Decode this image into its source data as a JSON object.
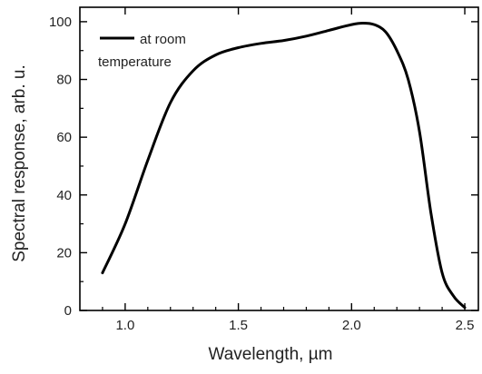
{
  "chart_data": {
    "type": "line",
    "xlabel": "Wavelength, µm",
    "ylabel": "Spectral response, arb. u.",
    "xlim": [
      0.8,
      2.56
    ],
    "ylim": [
      0,
      105
    ],
    "x_ticks": [
      1.0,
      1.5,
      2.0,
      2.5
    ],
    "x_tick_labels": [
      "1.0",
      "1.5",
      "2.0",
      "2.5"
    ],
    "y_ticks": [
      0,
      20,
      40,
      60,
      80,
      100
    ],
    "y_tick_labels": [
      "0",
      "20",
      "40",
      "60",
      "80",
      "100"
    ],
    "grid": false,
    "legend_position": "top-left",
    "series": [
      {
        "name": "at room temperature",
        "color": "#000000",
        "x": [
          0.9,
          1.0,
          1.1,
          1.2,
          1.3,
          1.4,
          1.5,
          1.6,
          1.7,
          1.8,
          1.9,
          2.0,
          2.05,
          2.1,
          2.15,
          2.2,
          2.25,
          2.3,
          2.35,
          2.4,
          2.45,
          2.5
        ],
        "y": [
          13,
          30,
          52,
          72,
          83,
          88.5,
          91,
          92.5,
          93.5,
          95,
          97,
          99,
          99.5,
          99,
          96.5,
          90,
          80,
          62,
          34,
          13,
          5,
          1
        ]
      }
    ]
  },
  "legend": {
    "line1": "at room",
    "line2": "temperature"
  }
}
